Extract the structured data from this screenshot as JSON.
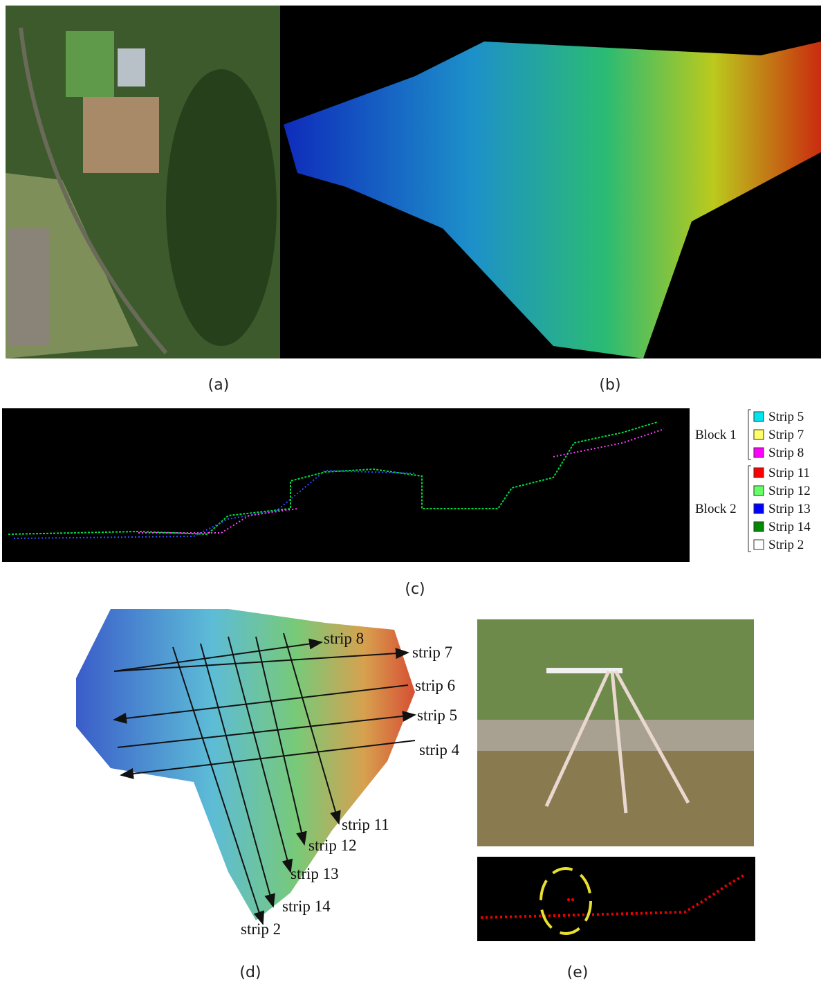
{
  "captions": [
    "(a)",
    "(b)",
    "(c)",
    "(d)",
    "(e)"
  ],
  "legend": [
    {
      "label": "Block 1",
      "strips": [
        {
          "name": "Strip 5",
          "color": "#00e5ee"
        },
        {
          "name": "Strip 7",
          "color": "#ffff66"
        },
        {
          "name": "Strip 8",
          "color": "#ff00ff"
        }
      ]
    },
    {
      "label": "Block 2",
      "strips": [
        {
          "name": "Strip 11",
          "color": "#ff0000"
        },
        {
          "name": "Strip 12",
          "color": "#66ff66"
        },
        {
          "name": "Strip 13",
          "color": "#0000ff"
        },
        {
          "name": "Strip 14",
          "color": "#008800"
        },
        {
          "name": "Strip 2",
          "color": "#ffffff"
        }
      ]
    }
  ],
  "strip_labels": [
    "strip 8",
    "strip 7",
    "strip 6",
    "strip 5",
    "strip 4",
    "strip 11",
    "strip 12",
    "strip 13",
    "strip 14",
    "strip 2"
  ]
}
